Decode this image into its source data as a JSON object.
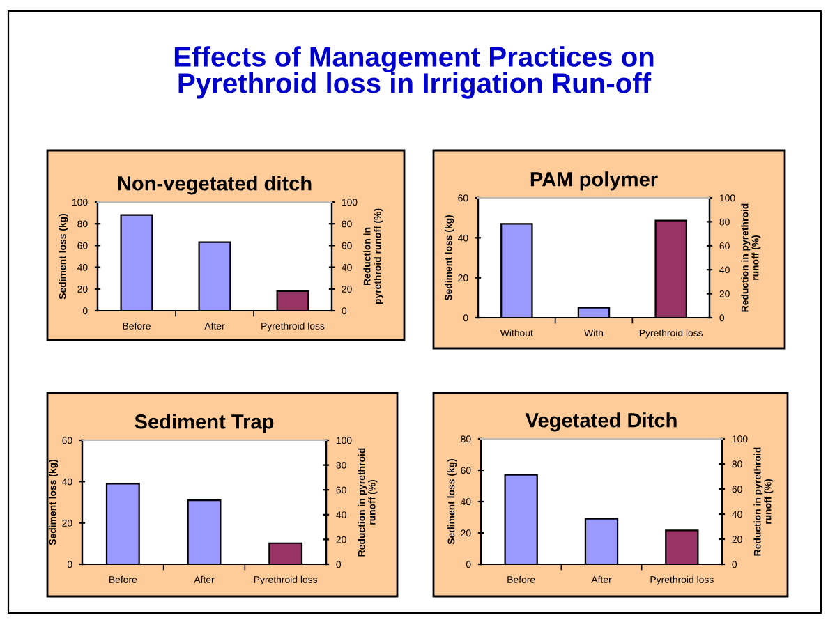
{
  "chart_data": [
    {
      "type": "bar",
      "title": "Non-vegetated ditch",
      "annotations": [
        "Effects of Management Practices on\nPyrethroid loss in Irrigation Run-off"
      ],
      "categories": [
        "Before",
        "After",
        "Pyrethroid loss"
      ],
      "ylabel": "Sediment loss (kg)",
      "y2label": "Reduction in\npyrethroid runoff (%)",
      "ylim": [
        0,
        100
      ],
      "yticks": [
        0,
        20,
        40,
        60,
        80,
        100
      ],
      "y2lim": [
        0,
        100
      ],
      "y2ticks": [
        0,
        20,
        40,
        60,
        80,
        100
      ],
      "grid": false,
      "series": [
        {
          "color": "#9999ff",
          "values": [
            88,
            63,
            null
          ]
        },
        {
          "color": "#993366",
          "values": [
            null,
            null,
            18
          ],
          "axis": "y2"
        }
      ]
    },
    {
      "type": "bar",
      "title": "PAM polymer",
      "categories": [
        "Without",
        "With",
        "Pyrethroid loss"
      ],
      "ylabel": "Sediment loss (kg)",
      "y2label": "Reduction in pyrethroid\nrunoff (%)",
      "ylim": [
        0,
        60
      ],
      "yticks": [
        0,
        20,
        40,
        60
      ],
      "y2lim": [
        0,
        100
      ],
      "y2ticks": [
        0,
        20,
        40,
        60,
        80,
        100
      ],
      "grid": false,
      "series": [
        {
          "color": "#9999ff",
          "values": [
            47,
            5,
            null
          ]
        },
        {
          "color": "#993366",
          "values": [
            null,
            null,
            81
          ],
          "axis": "y2"
        }
      ]
    },
    {
      "type": "bar",
      "title": "Sediment Trap",
      "categories": [
        "Before",
        "After",
        "Pyrethroid loss"
      ],
      "ylabel": "Sediment loss (kg)",
      "y2label": "Reduction in pyrethroid\nrunoff (%)",
      "ylim": [
        0,
        60
      ],
      "yticks": [
        0,
        20,
        40,
        60
      ],
      "y2lim": [
        0,
        100
      ],
      "y2ticks": [
        0,
        20,
        40,
        60,
        80,
        100
      ],
      "grid": false,
      "series": [
        {
          "color": "#9999ff",
          "values": [
            39,
            31,
            null
          ]
        },
        {
          "color": "#993366",
          "values": [
            null,
            null,
            17
          ],
          "axis": "y2"
        }
      ]
    },
    {
      "type": "bar",
      "title": "Vegetated Ditch",
      "categories": [
        "Before",
        "After",
        "Pyrethroid loss"
      ],
      "ylabel": "Sediment loss (kg)",
      "y2label": "Reduction in pyrethroid\nrunoff (%)",
      "ylim": [
        0,
        80
      ],
      "yticks": [
        0,
        20,
        40,
        60,
        80
      ],
      "y2lim": [
        0,
        100
      ],
      "y2ticks": [
        0,
        20,
        40,
        60,
        80,
        100
      ],
      "grid": false,
      "series": [
        {
          "color": "#9999ff",
          "values": [
            57,
            29,
            null
          ]
        },
        {
          "color": "#993366",
          "values": [
            null,
            null,
            27
          ],
          "axis": "y2"
        }
      ]
    }
  ]
}
